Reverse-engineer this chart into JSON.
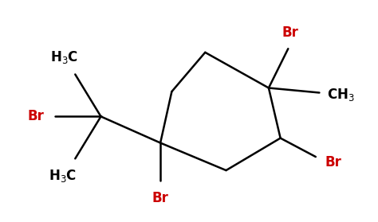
{
  "background_color": "#ffffff",
  "bond_color": "#000000",
  "br_color": "#cc0000",
  "black_text_color": "#000000",
  "line_width": 1.8,
  "fig_width": 4.74,
  "fig_height": 2.79,
  "dpi": 100,
  "ring_vertices": [
    [
      5.5,
      5.1
    ],
    [
      7.1,
      4.25
    ],
    [
      7.3,
      2.85
    ],
    [
      5.5,
      2.0
    ],
    [
      3.7,
      2.85
    ],
    [
      3.9,
      4.25
    ]
  ],
  "c1_idx": 3,
  "c4_idx": 1,
  "c2_idx": 2,
  "xlim": [
    0,
    10
  ],
  "ylim": [
    0,
    6
  ],
  "font_size": 12
}
